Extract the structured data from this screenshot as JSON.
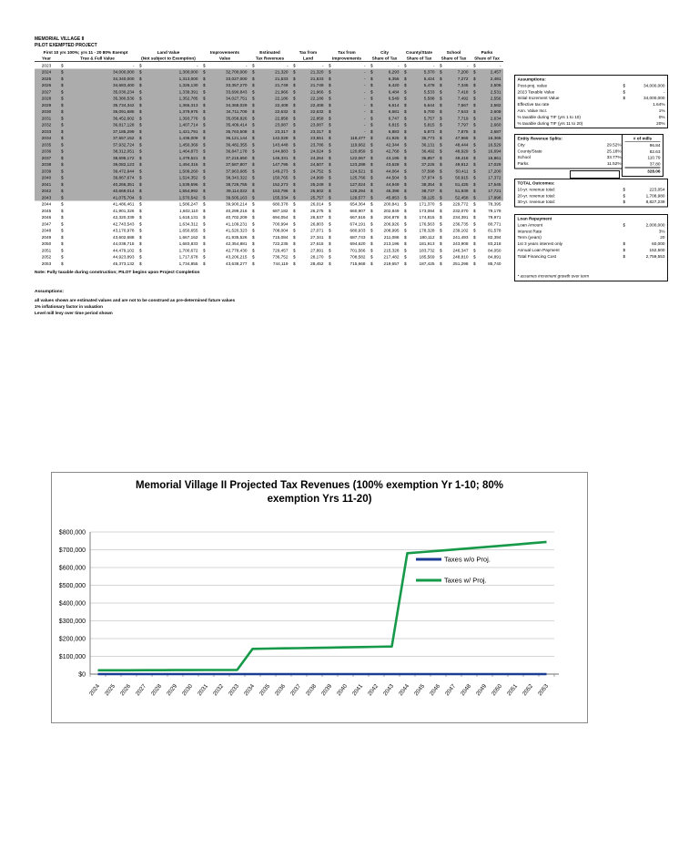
{
  "doc": {
    "title_line1": "MEMORIAL VILLAGE II",
    "title_line2": "PILOT EXEMPTED PROJECT",
    "exempt_note": "First 10 yrs 100%; yrs 11 - 20  80% Exempt",
    "note": "Note: Fully taxable during construction; PILOT begins upon Project Completion",
    "assumptions_label": "Assumptions:",
    "assumption_lines": [
      "all values shown are estimated values and are not to be construed as pre-determined future values",
      "1% inflationary factor in valuation",
      "Level mill levy over time period shown"
    ]
  },
  "table": {
    "columns": [
      {
        "l1": "",
        "l2": "Year"
      },
      {
        "l1": "",
        "l2": "True & Full Value"
      },
      {
        "l1": "Land Value",
        "l2": "(Not subject to Exemption)"
      },
      {
        "l1": "Improvements",
        "l2": "Value"
      },
      {
        "l1": "Estimated",
        "l2": "Tax Revenues"
      },
      {
        "l1": "Tax from",
        "l2": "Land"
      },
      {
        "l1": "Tax from",
        "l2": "Improvements"
      },
      {
        "l1": "City",
        "l2": "Share of Tax"
      },
      {
        "l1": "County/State",
        "l2": "Share of Tax"
      },
      {
        "l1": "School",
        "l2": "Share of Tax"
      },
      {
        "l1": "Parks",
        "l2": "Share of Tax"
      }
    ],
    "rows": [
      {
        "year": "2023",
        "shaded": false,
        "values": [
          "-",
          "-",
          "-",
          "-",
          "-",
          "-",
          "-",
          "-",
          "-",
          "-"
        ]
      },
      {
        "year": "2024",
        "shaded": true,
        "values": [
          "34,000,000",
          "1,300,000",
          "32,700,000",
          "21,320",
          "21,320",
          "-",
          "6,293",
          "5,370",
          "7,200",
          "2,457"
        ]
      },
      {
        "year": "2025",
        "shaded": true,
        "values": [
          "34,340,000",
          "1,313,000",
          "33,027,000",
          "21,533",
          "21,533",
          "-",
          "6,356",
          "5,424",
          "7,272",
          "2,481"
        ]
      },
      {
        "year": "2026",
        "shaded": true,
        "values": [
          "34,683,400",
          "1,326,130",
          "33,357,270",
          "21,749",
          "21,749",
          "-",
          "6,420",
          "5,478",
          "7,345",
          "2,506"
        ]
      },
      {
        "year": "2027",
        "shaded": true,
        "values": [
          "35,030,234",
          "1,339,391",
          "33,690,843",
          "21,966",
          "21,966",
          "-",
          "6,484",
          "5,533",
          "7,418",
          "2,531"
        ]
      },
      {
        "year": "2028",
        "shaded": true,
        "values": [
          "35,380,536",
          "1,352,785",
          "34,027,751",
          "22,186",
          "22,186",
          "-",
          "6,549",
          "5,588",
          "7,492",
          "2,556"
        ]
      },
      {
        "year": "2029",
        "shaded": true,
        "values": [
          "35,734,342",
          "1,366,313",
          "34,368,029",
          "22,408",
          "22,408",
          "-",
          "6,614",
          "5,644",
          "7,567",
          "2,582"
        ]
      },
      {
        "year": "2030",
        "shaded": true,
        "values": [
          "36,091,685",
          "1,379,976",
          "34,711,709",
          "22,632",
          "22,632",
          "-",
          "6,681",
          "5,700",
          "7,643",
          "2,608"
        ]
      },
      {
        "year": "2031",
        "shaded": true,
        "values": [
          "36,452,602",
          "1,393,776",
          "35,058,826",
          "22,858",
          "22,858",
          "-",
          "6,747",
          "5,757",
          "7,719",
          "2,634"
        ]
      },
      {
        "year": "2032",
        "shaded": true,
        "values": [
          "36,817,128",
          "1,407,714",
          "35,409,414",
          "23,087",
          "23,087",
          "-",
          "6,815",
          "5,815",
          "7,797",
          "2,660"
        ]
      },
      {
        "year": "2033",
        "shaded": true,
        "values": [
          "37,185,299",
          "1,421,791",
          "35,763,508",
          "23,317",
          "23,317",
          "-",
          "6,883",
          "5,873",
          "7,875",
          "2,687"
        ]
      },
      {
        "year": "2034",
        "shaded": true,
        "values": [
          "37,557,152",
          "1,436,009",
          "36,121,144",
          "142,028",
          "23,551",
          "118,477",
          "41,925",
          "35,773",
          "47,965",
          "16,365"
        ]
      },
      {
        "year": "2035",
        "shaded": true,
        "values": [
          "37,932,724",
          "1,450,369",
          "36,482,355",
          "143,448",
          "23,786",
          "119,662",
          "42,344",
          "36,131",
          "48,444",
          "16,529"
        ]
      },
      {
        "year": "2036",
        "shaded": true,
        "values": [
          "38,312,051",
          "1,464,873",
          "36,847,178",
          "144,883",
          "24,024",
          "120,859",
          "42,768",
          "36,492",
          "48,929",
          "16,694"
        ]
      },
      {
        "year": "2037",
        "shaded": true,
        "values": [
          "38,695,172",
          "1,479,521",
          "37,215,650",
          "146,331",
          "24,264",
          "122,067",
          "43,196",
          "36,857",
          "49,418",
          "16,861"
        ]
      },
      {
        "year": "2038",
        "shaded": true,
        "values": [
          "39,082,123",
          "1,494,316",
          "37,587,807",
          "147,795",
          "24,507",
          "123,288",
          "43,628",
          "37,226",
          "49,912",
          "17,029"
        ]
      },
      {
        "year": "2039",
        "shaded": true,
        "values": [
          "39,472,944",
          "1,509,260",
          "37,963,685",
          "149,273",
          "24,752",
          "124,521",
          "44,064",
          "37,598",
          "50,411",
          "17,200"
        ]
      },
      {
        "year": "2040",
        "shaded": true,
        "values": [
          "39,867,674",
          "1,524,352",
          "38,343,322",
          "150,765",
          "24,999",
          "125,766",
          "44,504",
          "37,974",
          "50,915",
          "17,372"
        ]
      },
      {
        "year": "2041",
        "shaded": true,
        "values": [
          "40,266,351",
          "1,539,596",
          "38,726,755",
          "152,273",
          "25,249",
          "127,024",
          "44,949",
          "38,354",
          "51,425",
          "17,545"
        ]
      },
      {
        "year": "2042",
        "shaded": true,
        "values": [
          "40,669,014",
          "1,554,992",
          "39,114,022",
          "153,796",
          "25,502",
          "128,294",
          "45,398",
          "38,737",
          "51,939",
          "17,721"
        ]
      },
      {
        "year": "2043",
        "shaded": true,
        "values": [
          "41,075,704",
          "1,570,542",
          "39,505,163",
          "155,334",
          "25,757",
          "129,577",
          "45,853",
          "39,125",
          "52,458",
          "17,898"
        ]
      },
      {
        "year": "2044",
        "shaded": false,
        "values": [
          "41,486,461",
          "1,586,247",
          "39,900,214",
          "680,378",
          "26,014",
          "654,364",
          "200,841",
          "171,370",
          "229,772",
          "78,395"
        ]
      },
      {
        "year": "2045",
        "shaded": false,
        "values": [
          "41,901,326",
          "1,602,110",
          "40,299,216",
          "687,182",
          "26,275",
          "660,907",
          "202,849",
          "173,084",
          "232,070",
          "79,179"
        ]
      },
      {
        "year": "2046",
        "shaded": false,
        "values": [
          "42,320,339",
          "1,618,131",
          "40,702,209",
          "694,054",
          "26,537",
          "667,516",
          "204,878",
          "174,815",
          "234,391",
          "79,971"
        ]
      },
      {
        "year": "2047",
        "shaded": false,
        "values": [
          "42,743,543",
          "1,634,312",
          "41,109,231",
          "700,994",
          "26,803",
          "674,191",
          "206,926",
          "176,563",
          "236,735",
          "80,771"
        ]
      },
      {
        "year": "2048",
        "shaded": false,
        "values": [
          "43,170,978",
          "1,650,655",
          "41,520,323",
          "708,004",
          "27,071",
          "680,933",
          "208,995",
          "178,328",
          "239,102",
          "81,578"
        ]
      },
      {
        "year": "2049",
        "shaded": false,
        "values": [
          "43,602,688",
          "1,667,162",
          "41,935,526",
          "715,084",
          "27,341",
          "687,743",
          "211,086",
          "180,112",
          "241,493",
          "82,394"
        ]
      },
      {
        "year": "2050",
        "shaded": false,
        "values": [
          "44,038,715",
          "1,683,833",
          "42,354,881",
          "722,235",
          "27,615",
          "694,620",
          "213,196",
          "181,913",
          "243,908",
          "83,218"
        ]
      },
      {
        "year": "2051",
        "shaded": false,
        "values": [
          "44,479,102",
          "1,700,672",
          "42,778,430",
          "729,457",
          "27,891",
          "701,566",
          "215,328",
          "183,732",
          "246,347",
          "84,050"
        ]
      },
      {
        "year": "2052",
        "shaded": false,
        "values": [
          "44,923,893",
          "1,717,678",
          "43,206,215",
          "736,752",
          "28,170",
          "708,582",
          "217,482",
          "185,569",
          "248,810",
          "84,891"
        ]
      },
      {
        "year": "2053",
        "shaded": false,
        "values": [
          "45,373,132",
          "1,734,855",
          "43,638,277",
          "744,119",
          "28,452",
          "715,668",
          "219,657",
          "187,425",
          "251,298",
          "85,740"
        ]
      }
    ]
  },
  "assumptions_box": {
    "title": "Assumptions:",
    "rows": [
      {
        "label": "Post-proj. value",
        "prefix": "$",
        "value": "34,000,000"
      },
      {
        "label": "2023 Taxable Value",
        "prefix": "$",
        "value": "-"
      },
      {
        "label": "Initial Increment Value",
        "prefix": "$",
        "value": "34,000,000"
      },
      {
        "label": "Effective tax rate",
        "prefix": "",
        "value": "1.64%"
      },
      {
        "label": "Ann. Value Incr.",
        "prefix": "",
        "value": "1%"
      },
      {
        "label": "% taxable during TIF (yrs 1 to 10)",
        "prefix": "",
        "value": "0%"
      },
      {
        "label": "% taxable during TIF (yrs 11 to 20)",
        "prefix": "",
        "value": "20%"
      }
    ]
  },
  "splits_box": {
    "title": "Entity Revenue Splits:",
    "mills_header": "# of mills",
    "rows": [
      {
        "label": "City",
        "pct": "29.52%",
        "mills": "96.84"
      },
      {
        "label": "County/State",
        "pct": "25.18%",
        "mills": "82.63"
      },
      {
        "label": "School",
        "pct": "33.77%",
        "mills": "110.79"
      },
      {
        "label": "Parks",
        "pct": "11.52%",
        "mills": "37.80"
      }
    ],
    "mills_total": "328.06"
  },
  "outcomes_box": {
    "title": "TOTAL Outcomes:",
    "rows": [
      {
        "label": "10-yr. revenue total:",
        "prefix": "$",
        "value": "223,054"
      },
      {
        "label": "20-yr. revenue total:",
        "prefix": "$",
        "value": "1,708,980"
      },
      {
        "label": "30-yr. revenue total:",
        "prefix": "$",
        "value": "8,827,239"
      }
    ]
  },
  "loan_box": {
    "title": "Loan Repayment",
    "rows": [
      {
        "label": "Loan Amount",
        "prefix": "$",
        "value": "2,000,000"
      },
      {
        "label": "Interest Rate",
        "prefix": "",
        "value": "3%"
      },
      {
        "label": "Term (years)",
        "prefix": "",
        "value": "20"
      },
      {
        "label": "1st 3 years interest only",
        "prefix": "$",
        "value": "60,000"
      },
      {
        "label": "Annual Loan Payment",
        "prefix": "$",
        "value": "152,500"
      },
      {
        "label": "Total Financing Cost",
        "prefix": "$",
        "value": "2,759,553"
      }
    ],
    "footnote": "* assumes increment growth over term"
  },
  "chart_data": {
    "type": "line",
    "title": "Memorial Village II Projected Tax Revenues (100% exemption Yr 1-10; 80% exemption Yrs 11-20)",
    "x": [
      2024,
      2025,
      2026,
      2027,
      2028,
      2029,
      2030,
      2031,
      2032,
      2033,
      2034,
      2035,
      2036,
      2037,
      2038,
      2039,
      2040,
      2041,
      2042,
      2043,
      2044,
      2045,
      2046,
      2047,
      2048,
      2049,
      2050,
      2051,
      2052,
      2053
    ],
    "series": [
      {
        "name": "Taxes w/o Proj.",
        "color": "#1b3c94",
        "values": [
          0,
          0,
          0,
          0,
          0,
          0,
          0,
          0,
          0,
          0,
          0,
          0,
          0,
          0,
          0,
          0,
          0,
          0,
          0,
          0,
          0,
          0,
          0,
          0,
          0,
          0,
          0,
          0,
          0,
          0
        ]
      },
      {
        "name": "Taxes w/ Proj.",
        "color": "#169a49",
        "values": [
          21320,
          21533,
          21749,
          21966,
          22186,
          22408,
          22632,
          22858,
          23087,
          23317,
          142028,
          143448,
          144883,
          146331,
          147795,
          149273,
          150765,
          152273,
          153796,
          155334,
          680378,
          687182,
          694054,
          700994,
          708004,
          715084,
          722235,
          729457,
          736752,
          744119
        ]
      }
    ],
    "ylim": [
      0,
      800000
    ],
    "ytick_step": 100000,
    "grid": true,
    "legend_position": "inside-right"
  }
}
